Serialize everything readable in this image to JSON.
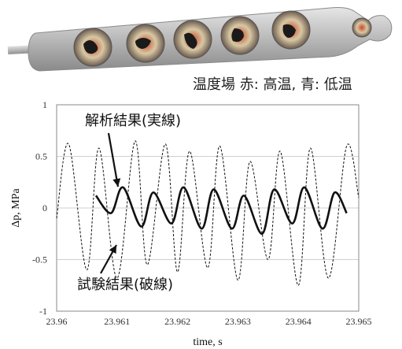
{
  "illustration": {
    "caption": "温度場 赤: 高温, 青: 低温"
  },
  "chart_data": {
    "type": "line",
    "xlabel": "time, s",
    "ylabel": "Δp, MPa",
    "xlim": [
      23.96,
      23.965
    ],
    "ylim": [
      -1,
      1
    ],
    "x_ticks": [
      "23.96",
      "23.961",
      "23.962",
      "23.963",
      "23.964",
      "23.965"
    ],
    "y_ticks": [
      "1",
      "0.5",
      "0",
      "-0.5",
      "-1"
    ],
    "grid": true,
    "annotations": [
      {
        "text": "解析結果(実線)",
        "target_series": "analysis"
      },
      {
        "text": "試験結果(破線)",
        "target_series": "experiment"
      }
    ],
    "series": [
      {
        "id": "experiment",
        "style": "dashed",
        "x": [
          23.96,
          23.9602,
          23.9605,
          23.9607,
          23.961,
          23.9613,
          23.9615,
          23.9618,
          23.962,
          23.9622,
          23.9625,
          23.9627,
          23.963,
          23.9632,
          23.9635,
          23.9637,
          23.964,
          23.9642,
          23.9645,
          23.9648,
          23.965
        ],
        "values": [
          -0.1,
          0.62,
          -0.6,
          0.58,
          -0.68,
          0.65,
          -0.55,
          0.62,
          -0.62,
          0.55,
          -0.58,
          0.6,
          -0.7,
          0.45,
          -0.5,
          0.55,
          -0.75,
          0.58,
          -0.68,
          0.6,
          0.1
        ]
      },
      {
        "id": "analysis",
        "style": "solid",
        "x": [
          23.96065,
          23.9609,
          23.9611,
          23.9614,
          23.9616,
          23.9619,
          23.9621,
          23.9624,
          23.9626,
          23.9629,
          23.9631,
          23.9634,
          23.9636,
          23.9639,
          23.9641,
          23.9644,
          23.9646,
          23.9648
        ],
        "values": [
          0.12,
          -0.05,
          0.2,
          -0.18,
          0.15,
          -0.15,
          0.2,
          -0.2,
          0.18,
          -0.2,
          0.12,
          -0.25,
          0.18,
          -0.15,
          0.2,
          -0.2,
          0.15,
          -0.05
        ]
      }
    ]
  }
}
